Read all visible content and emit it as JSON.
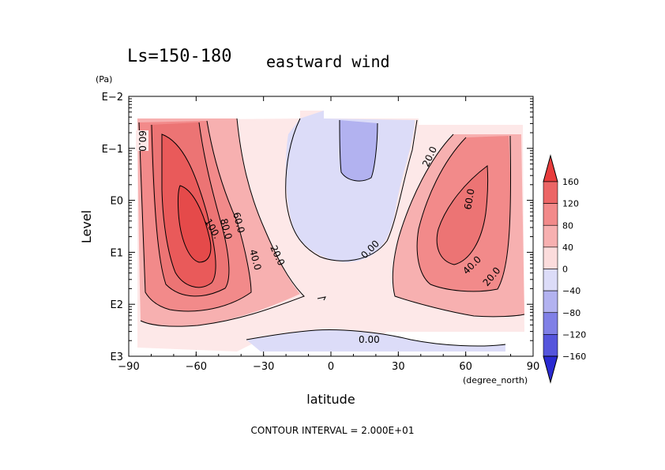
{
  "chart_data": {
    "type": "contour",
    "title": "Ls=150-180",
    "subtitle": "eastward wind",
    "xlabel": "latitude",
    "x_units": "(degree_north)",
    "ylabel": "Level",
    "y_units": "(Pa)",
    "x_range": [
      -90,
      90
    ],
    "x_ticks": [
      -90,
      -60,
      -30,
      0,
      30,
      60,
      90
    ],
    "x_tick_labels": [
      "−90",
      "−60",
      "−30",
      "0",
      "30",
      "60",
      "90"
    ],
    "y_scale": "log",
    "y_range_pa": [
      1000,
      0.01
    ],
    "y_tick_labels": [
      "E−2",
      "E−1",
      "E0",
      "E1",
      "E2",
      "E3"
    ],
    "contour_labels": [
      "60.0",
      "100.",
      "80.0",
      "60.0",
      "40.0",
      "20.0",
      "0.00",
      "20.0",
      "60.0",
      "40.0",
      "20.0",
      "0.00"
    ],
    "colorbar": {
      "labels": [
        "160",
        "120",
        "80",
        "40",
        "0",
        "−40",
        "−80",
        "−120",
        "−160"
      ],
      "colors": [
        "#e83c3c",
        "#ec6666",
        "#f28a8a",
        "#f7b0b0",
        "#fbdcdc",
        "#dcdcf8",
        "#b2b2f0",
        "#8080e6",
        "#5555dc",
        "#2a2ad2"
      ]
    },
    "footer": "CONTOUR INTERVAL = 2.000E+01"
  }
}
